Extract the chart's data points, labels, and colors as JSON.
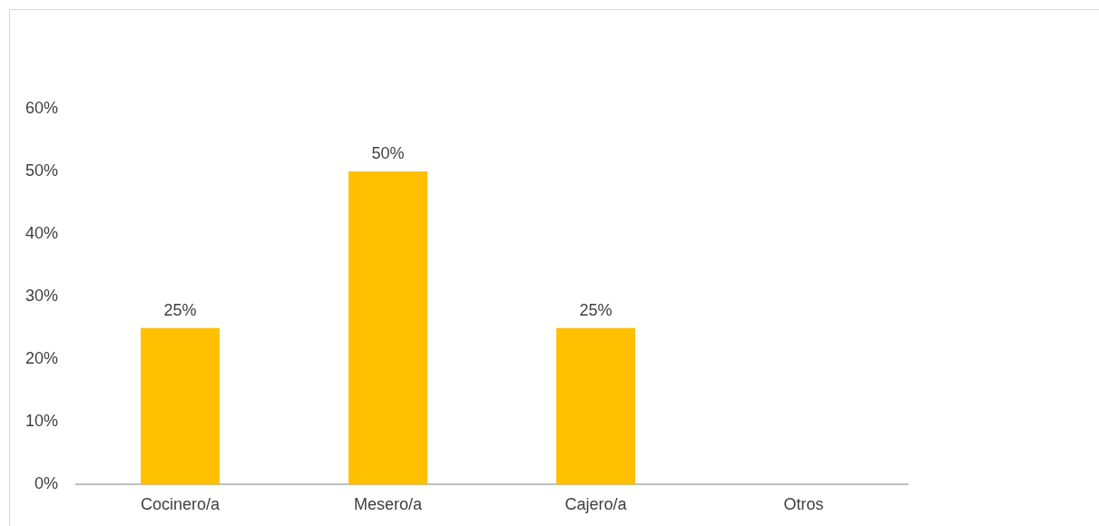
{
  "chart_data": {
    "type": "bar",
    "categories": [
      "Cocinero/a",
      "Mesero/a",
      "Cajero/a",
      "Otros"
    ],
    "values": [
      25,
      50,
      25,
      0
    ],
    "color": "#ffc000",
    "value_labels": [
      "25%",
      "50%",
      "25%",
      null
    ],
    "ylim": [
      0,
      60
    ],
    "yticks": [
      {
        "value": 0,
        "label": "0%"
      },
      {
        "value": 10,
        "label": "10%"
      },
      {
        "value": 20,
        "label": "20%"
      },
      {
        "value": 30,
        "label": "30%"
      },
      {
        "value": 40,
        "label": "40%"
      },
      {
        "value": 50,
        "label": "50%"
      },
      {
        "value": 60,
        "label": "60%"
      }
    ],
    "grid": false,
    "legend": false
  }
}
